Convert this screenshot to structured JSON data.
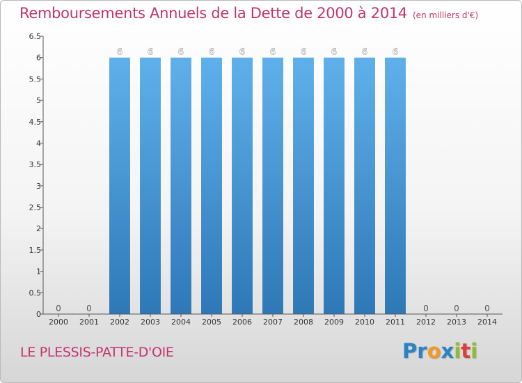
{
  "title": "Remboursements Annuels de la Dette de 2000 à 2014",
  "subtitle": "(en milliers d'€)",
  "commune": "LE PLESSIS-PATTE-D'OIE",
  "brand": {
    "letters": [
      {
        "char": "P",
        "color": "#2a83c7"
      },
      {
        "char": "r",
        "color": "#2a83c7"
      },
      {
        "char": "o",
        "color": "#f29a1f"
      },
      {
        "char": "x",
        "color": "#2a83c7"
      },
      {
        "char": "i",
        "color": "#8bbf2c"
      },
      {
        "char": "t",
        "color": "#e23b3b"
      },
      {
        "char": "i",
        "color": "#8bbf2c"
      }
    ]
  },
  "chart_data": {
    "type": "bar",
    "categories": [
      "2000",
      "2001",
      "2002",
      "2003",
      "2004",
      "2005",
      "2006",
      "2007",
      "2008",
      "2009",
      "2010",
      "2011",
      "2012",
      "2013",
      "2014"
    ],
    "values": [
      0,
      0,
      6,
      6,
      6,
      6,
      6,
      6,
      6,
      6,
      6,
      6,
      0,
      0,
      0
    ],
    "value_labels": [
      "0",
      "0",
      "6",
      "6",
      "6",
      "6",
      "6",
      "6",
      "6",
      "6",
      "6",
      "6",
      "0",
      "0",
      "0"
    ],
    "title": "Remboursements Annuels de la Dette de 2000 à 2014",
    "subtitle": "(en milliers d'€)",
    "ylim": [
      0,
      6.5
    ],
    "yticks": [
      0,
      0.5,
      1,
      1.5,
      2,
      2.5,
      3,
      3.5,
      4,
      4.5,
      5,
      5.5,
      6,
      6.5
    ],
    "ytick_labels": [
      "0",
      "0.5",
      "1",
      "1.5",
      "2",
      "2.5",
      "3",
      "3.5",
      "4",
      "4.5",
      "5",
      "5.5",
      "6",
      "6.5"
    ],
    "grid": false,
    "colors": {
      "bar_top": "#5fb0ea",
      "bar_bottom": "#2e78b7",
      "axis": "#555555"
    }
  }
}
